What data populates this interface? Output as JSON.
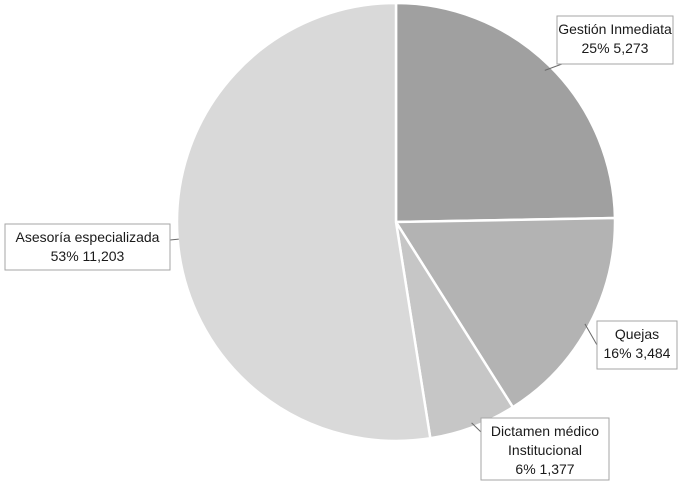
{
  "chart_data": {
    "type": "pie",
    "slices": [
      {
        "name": "Gestión Inmediata",
        "percent_label": "25%",
        "value": 5273,
        "value_label": "5,273",
        "color": "#a0a0a0"
      },
      {
        "name": "Quejas",
        "percent_label": "16%",
        "value": 3484,
        "value_label": "3,484",
        "color": "#b3b3b3"
      },
      {
        "name": "Dictamen médico Institucional",
        "name_lines": [
          "Dictamen médico",
          "Institucional"
        ],
        "percent_label": "6%",
        "value": 1377,
        "value_label": "1,377",
        "color": "#c6c6c6"
      },
      {
        "name": "Asesoría especializada",
        "percent_label": "53%",
        "value": 11203,
        "value_label": "11,203",
        "color": "#d9d9d9"
      }
    ],
    "start_angle": "12 o'clock",
    "direction": "clockwise",
    "legend": "none"
  }
}
